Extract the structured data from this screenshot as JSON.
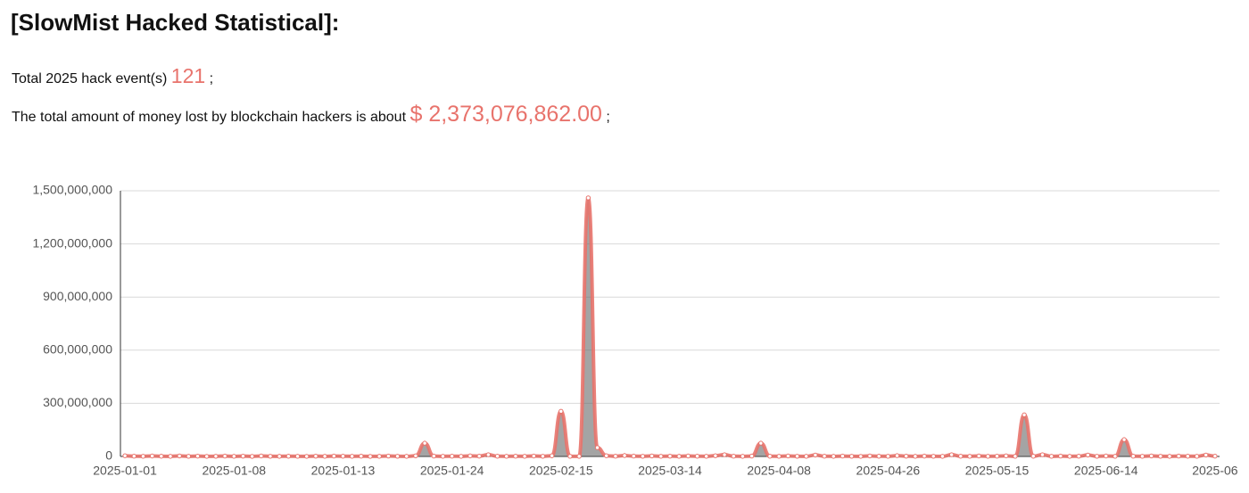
{
  "header": {
    "title": "[SlowMist Hacked Statistical]:"
  },
  "stats": {
    "events": {
      "label": "Total 2025 hack event(s)",
      "value": 121,
      "end": ";"
    },
    "amount": {
      "label": "The total amount of money lost by blockchain hackers is about",
      "value": "$ 2,373,076,862.00",
      "end": ";"
    }
  },
  "chart_data": {
    "type": "line",
    "categories": [
      "2025-01-01",
      null,
      null,
      null,
      null,
      null,
      null,
      null,
      null,
      null,
      null,
      null,
      "2025-01-08",
      null,
      null,
      null,
      null,
      null,
      null,
      null,
      null,
      null,
      null,
      null,
      "2025-01-13",
      null,
      null,
      null,
      null,
      null,
      null,
      null,
      null,
      null,
      null,
      null,
      "2025-01-24",
      null,
      null,
      null,
      null,
      null,
      null,
      null,
      null,
      null,
      null,
      null,
      "2025-02-15",
      null,
      null,
      null,
      null,
      null,
      null,
      null,
      null,
      null,
      null,
      null,
      "2025-03-14",
      null,
      null,
      null,
      null,
      null,
      null,
      null,
      null,
      null,
      null,
      null,
      "2025-04-08",
      null,
      null,
      null,
      null,
      null,
      null,
      null,
      null,
      null,
      null,
      null,
      "2025-04-26",
      null,
      null,
      null,
      null,
      null,
      null,
      null,
      null,
      null,
      null,
      null,
      "2025-05-15",
      null,
      null,
      null,
      null,
      null,
      null,
      null,
      null,
      null,
      null,
      null,
      "2025-06-14",
      null,
      null,
      null,
      null,
      null,
      null,
      null,
      null,
      null,
      null,
      null,
      "2025-06"
    ],
    "series": [
      {
        "color": "#e8736c",
        "values": [
          4000000,
          1500000,
          800000,
          2500000,
          1200000,
          600000,
          3000000,
          900000,
          1800000,
          500000,
          1100000,
          2200000,
          700000,
          1600000,
          400000,
          2800000,
          1000000,
          600000,
          1300000,
          900000,
          500000,
          1700000,
          800000,
          2100000,
          1200000,
          700000,
          1500000,
          400000,
          900000,
          2300000,
          1000000,
          600000,
          3500000,
          75000000,
          2000000,
          900000,
          1400000,
          600000,
          3200000,
          1800000,
          10000000,
          1200000,
          700000,
          1500000,
          900000,
          2400000,
          1100000,
          3800000,
          255000000,
          800000,
          600000,
          1460000000,
          50000000,
          4000000,
          1500000,
          5000000,
          2000000,
          1100000,
          3000000,
          900000,
          1600000,
          700000,
          2500000,
          1200000,
          800000,
          4200000,
          10000000,
          1500000,
          600000,
          2200000,
          75000000,
          1300000,
          900000,
          2600000,
          1100000,
          700000,
          8000000,
          1400000,
          600000,
          2000000,
          1000000,
          500000,
          3000000,
          1200000,
          800000,
          4500000,
          1600000,
          700000,
          1900000,
          1100000,
          600000,
          10000000,
          1300000,
          900000,
          2700000,
          700000,
          1500000,
          3300000,
          800000,
          235000000,
          1200000,
          10000000,
          900000,
          2000000,
          600000,
          1400000,
          8000000,
          1000000,
          2500000,
          700000,
          95000000,
          1500000,
          900000,
          3000000,
          1100000,
          600000,
          2200000,
          1300000,
          800000,
          8000000,
          1800000
        ]
      }
    ],
    "ylim": [
      0,
      1500000000
    ],
    "yticks": [
      0,
      {
        "value": 300000000,
        "label": "300,000,000"
      },
      {
        "value": 600000000,
        "label": "600,000,000"
      },
      {
        "value": 900000000,
        "label": "900,000,000"
      },
      {
        "value": 1200000000,
        "label": "1,200,000,000"
      },
      {
        "value": 1500000000,
        "label": "1,500,000,000"
      }
    ],
    "grid": true
  }
}
